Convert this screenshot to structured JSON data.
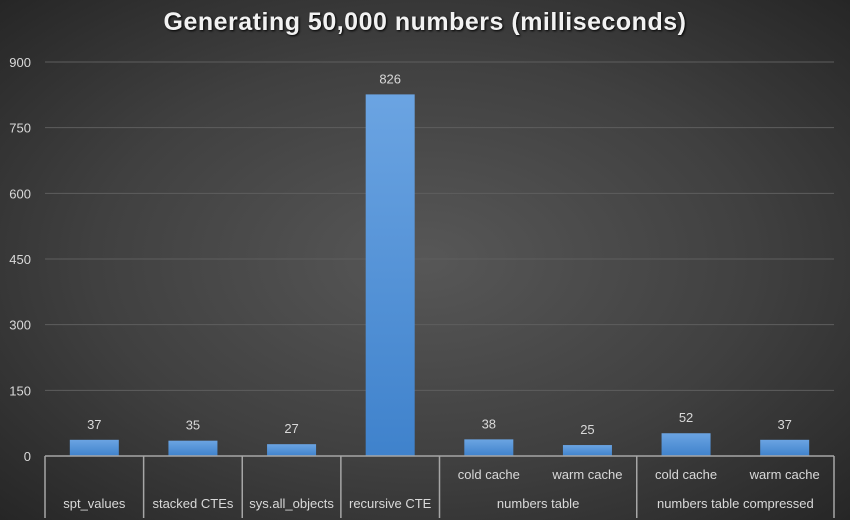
{
  "chart_data": {
    "type": "bar",
    "title": "Generating 50,000 numbers (milliseconds)",
    "categories": [
      {
        "label": "spt_values",
        "group": ""
      },
      {
        "label": "stacked CTEs",
        "group": ""
      },
      {
        "label": "sys.all_objects",
        "group": ""
      },
      {
        "label": "recursive CTE",
        "group": ""
      },
      {
        "label": "cold cache",
        "group": "numbers table"
      },
      {
        "label": "warm cache",
        "group": "numbers table"
      },
      {
        "label": "cold cache",
        "group": "numbers table compressed"
      },
      {
        "label": "warm cache",
        "group": "numbers table compressed"
      }
    ],
    "groups": [
      "numbers table",
      "numbers table compressed"
    ],
    "values": [
      37,
      35,
      27,
      826,
      38,
      25,
      52,
      37
    ],
    "data_labels": [
      "37",
      "35",
      "27",
      "826",
      "38",
      "25",
      "52",
      "37"
    ],
    "ylim": [
      0,
      900
    ],
    "yticks": [
      "0",
      "150",
      "300",
      "450",
      "600",
      "750",
      "900"
    ],
    "xlabel": "",
    "ylabel": "",
    "grid": true,
    "legend": "none",
    "colors": {
      "bar_top": "#6ba4e2",
      "bar_bottom": "#3f82cc",
      "grid": "#5e5e5e",
      "text": "#d9d9d9"
    }
  }
}
